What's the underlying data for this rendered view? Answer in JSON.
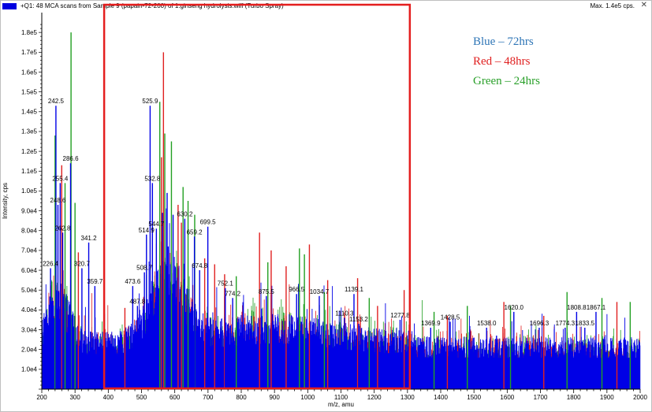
{
  "header": {
    "title": "+Q1: 48 MCA scans from Sample 9 (papain-72-200) of 1.ginseng hydrolysis.wiff (Turbo Spray)",
    "max_label": "Max. 1.4e5 cps."
  },
  "annotations": [
    {
      "text": "Blue – 72hrs",
      "color": "#2e75b6"
    },
    {
      "text": "Red – 48hrs",
      "color": "#e02020"
    },
    {
      "text": "Green – 24hrs",
      "color": "#2aa02a"
    }
  ],
  "colors": {
    "blue": "#0000e6",
    "red": "#e02020",
    "green": "#22a022",
    "highlight_box": "#e41e1e"
  },
  "chart_data": {
    "type": "bar",
    "xlabel": "m/z, amu",
    "ylabel": "Intensity, cps",
    "xlim": [
      200,
      2000
    ],
    "ylim": [
      0,
      190000
    ],
    "x_ticks": [
      "200",
      "300",
      "400",
      "500",
      "600",
      "700",
      "800",
      "900",
      "1000",
      "1100",
      "1200",
      "1300",
      "1400",
      "1500",
      "1600",
      "1700",
      "1800",
      "1900",
      "2000"
    ],
    "y_ticks": [
      {
        "value": 10000,
        "label": "1.0e4"
      },
      {
        "value": 20000,
        "label": "2.0e4"
      },
      {
        "value": 30000,
        "label": "3.0e4"
      },
      {
        "value": 40000,
        "label": "4.0e4"
      },
      {
        "value": 50000,
        "label": "5.0e4"
      },
      {
        "value": 60000,
        "label": "6.0e4"
      },
      {
        "value": 70000,
        "label": "7.0e4"
      },
      {
        "value": 80000,
        "label": "8.0e4"
      },
      {
        "value": 90000,
        "label": "9.0e4"
      },
      {
        "value": 100000,
        "label": "1.0e5"
      },
      {
        "value": 110000,
        "label": "1.1e5"
      },
      {
        "value": 120000,
        "label": "1.2e5"
      },
      {
        "value": 130000,
        "label": "1.3e5"
      },
      {
        "value": 140000,
        "label": "1.4e5"
      },
      {
        "value": 150000,
        "label": "1.5e5"
      },
      {
        "value": 160000,
        "label": "1.6e5"
      },
      {
        "value": 170000,
        "label": "1.7e5"
      },
      {
        "value": 180000,
        "label": "1.8e5"
      }
    ],
    "highlight_region": [
      390,
      1300
    ],
    "series": [
      {
        "name": "Blue – 72hrs",
        "color": "#0000e6",
        "peaks": [
          [
            242.5,
            143000
          ],
          [
            255.4,
            104000
          ],
          [
            248.6,
            93000
          ],
          [
            286.6,
            114000
          ],
          [
            262.8,
            79000
          ],
          [
            341.2,
            74000
          ],
          [
            320.7,
            61000
          ],
          [
            226.4,
            61000
          ],
          [
            525.9,
            143000
          ],
          [
            532.8,
            104000
          ],
          [
            514.9,
            78000
          ],
          [
            544.7,
            81000
          ],
          [
            630.2,
            86000
          ],
          [
            659.2,
            77000
          ],
          [
            699.5,
            82000
          ],
          [
            674.8,
            60000
          ],
          [
            600.1,
            62000
          ],
          [
            580.2,
            72000
          ],
          [
            752.1,
            51000
          ],
          [
            774.2,
            46000
          ],
          [
            875.5,
            47000
          ],
          [
            966.5,
            48000
          ],
          [
            1034.7,
            47000
          ],
          [
            1139.1,
            48000
          ],
          [
            1110.3,
            36000
          ],
          [
            1153.2,
            33000
          ],
          [
            1277.8,
            35000
          ],
          [
            1369.9,
            31000
          ],
          [
            1428.5,
            34000
          ],
          [
            1538.0,
            31000
          ],
          [
            1620.0,
            39000
          ],
          [
            1696.3,
            31000
          ],
          [
            1808.8,
            39000
          ],
          [
            1867.1,
            39000
          ],
          [
            1833.5,
            31000
          ],
          [
            1774.3,
            31000
          ],
          [
            1567.9,
            27000
          ],
          [
            1500.0,
            26000
          ],
          [
            359.7,
            52000
          ],
          [
            473.6,
            52000
          ],
          [
            487.8,
            42000
          ],
          [
            508.7,
            59000
          ],
          [
            563.0,
            89000
          ],
          [
            577.0,
            99000
          ],
          [
            595.0,
            88000
          ]
        ]
      },
      {
        "name": "Red – 48hrs",
        "color": "#e02020",
        "peaks": [
          [
            566.0,
            170000
          ],
          [
            560.0,
            117000
          ],
          [
            610.0,
            93000
          ],
          [
            620.0,
            84000
          ],
          [
            690.0,
            66000
          ],
          [
            720.0,
            63000
          ],
          [
            750.0,
            58000
          ],
          [
            855.0,
            79000
          ],
          [
            890.0,
            70000
          ],
          [
            935.0,
            62000
          ],
          [
            1005.0,
            73000
          ],
          [
            1060.0,
            55000
          ],
          [
            1150.0,
            56000
          ],
          [
            1210.0,
            42000
          ],
          [
            1290.0,
            50000
          ],
          [
            1420.0,
            37000
          ],
          [
            1590.0,
            44000
          ],
          [
            1710.0,
            37000
          ],
          [
            1930.0,
            44000
          ],
          [
            260.0,
            113000
          ],
          [
            310.0,
            69000
          ],
          [
            450.0,
            41000
          ]
        ]
      },
      {
        "name": "Green – 24hrs",
        "color": "#22a022",
        "peaks": [
          [
            288.0,
            180000
          ],
          [
            240.0,
            128000
          ],
          [
            270.0,
            104000
          ],
          [
            300.0,
            94000
          ],
          [
            555.0,
            145000
          ],
          [
            570.0,
            129000
          ],
          [
            590.0,
            125000
          ],
          [
            625.0,
            102000
          ],
          [
            640.0,
            95000
          ],
          [
            660.0,
            88000
          ],
          [
            785.0,
            57000
          ],
          [
            880.0,
            64000
          ],
          [
            975.0,
            71000
          ],
          [
            990.0,
            68000
          ],
          [
            1050.0,
            49000
          ],
          [
            1185.0,
            46000
          ],
          [
            1380.0,
            39000
          ],
          [
            1480.0,
            42000
          ],
          [
            1610.0,
            42000
          ],
          [
            1780.0,
            49000
          ],
          [
            1885.0,
            46000
          ],
          [
            1970.0,
            44000
          ]
        ]
      }
    ],
    "peak_labels": [
      {
        "x": 242.5,
        "y": 143000,
        "label": "242.5"
      },
      {
        "x": 286.6,
        "y": 114000,
        "label": "286.6"
      },
      {
        "x": 255.4,
        "y": 104000,
        "label": "255.4"
      },
      {
        "x": 248.6,
        "y": 93000,
        "label": "248.6"
      },
      {
        "x": 262.8,
        "y": 79000,
        "label": "262.8"
      },
      {
        "x": 341.2,
        "y": 74000,
        "label": "341.2"
      },
      {
        "x": 320.7,
        "y": 61000,
        "label": "320.7"
      },
      {
        "x": 226.4,
        "y": 61000,
        "label": "226.4"
      },
      {
        "x": 525.9,
        "y": 143000,
        "label": "525.9"
      },
      {
        "x": 532.8,
        "y": 104000,
        "label": "532.8"
      },
      {
        "x": 514.9,
        "y": 78000,
        "label": "514.9"
      },
      {
        "x": 544.7,
        "y": 81000,
        "label": "544.7"
      },
      {
        "x": 630.2,
        "y": 86000,
        "label": "630.2"
      },
      {
        "x": 659.2,
        "y": 77000,
        "label": "659.2"
      },
      {
        "x": 699.5,
        "y": 82000,
        "label": "699.5"
      },
      {
        "x": 674.8,
        "y": 60000,
        "label": "674.8"
      },
      {
        "x": 752.1,
        "y": 51000,
        "label": "752.1"
      },
      {
        "x": 774.2,
        "y": 46000,
        "label": "774.2"
      },
      {
        "x": 875.5,
        "y": 47000,
        "label": "875.5"
      },
      {
        "x": 966.5,
        "y": 48000,
        "label": "966.5"
      },
      {
        "x": 1034.7,
        "y": 47000,
        "label": "1034.7"
      },
      {
        "x": 1139.1,
        "y": 48000,
        "label": "1139.1"
      },
      {
        "x": 1110.3,
        "y": 36000,
        "label": "1110.3"
      },
      {
        "x": 1153.2,
        "y": 33000,
        "label": "1153.2"
      },
      {
        "x": 1277.8,
        "y": 35000,
        "label": "1277.8"
      },
      {
        "x": 1369.9,
        "y": 31000,
        "label": "1369.9"
      },
      {
        "x": 1428.5,
        "y": 34000,
        "label": "1428.5"
      },
      {
        "x": 1538.0,
        "y": 31000,
        "label": "1538.0"
      },
      {
        "x": 1620.0,
        "y": 39000,
        "label": "1620.0"
      },
      {
        "x": 1696.3,
        "y": 31000,
        "label": "1696.3"
      },
      {
        "x": 1808.8,
        "y": 39000,
        "label": "1808.8"
      },
      {
        "x": 1867.1,
        "y": 39000,
        "label": "1867.1"
      },
      {
        "x": 1833.5,
        "y": 31000,
        "label": "1833.5"
      },
      {
        "x": 1774.3,
        "y": 31000,
        "label": "1774.3"
      },
      {
        "x": 359.7,
        "y": 52000,
        "label": "359.7"
      },
      {
        "x": 473.6,
        "y": 52000,
        "label": "473.6"
      },
      {
        "x": 487.8,
        "y": 42000,
        "label": "487.8"
      },
      {
        "x": 508.7,
        "y": 59000,
        "label": "508.7"
      }
    ]
  }
}
